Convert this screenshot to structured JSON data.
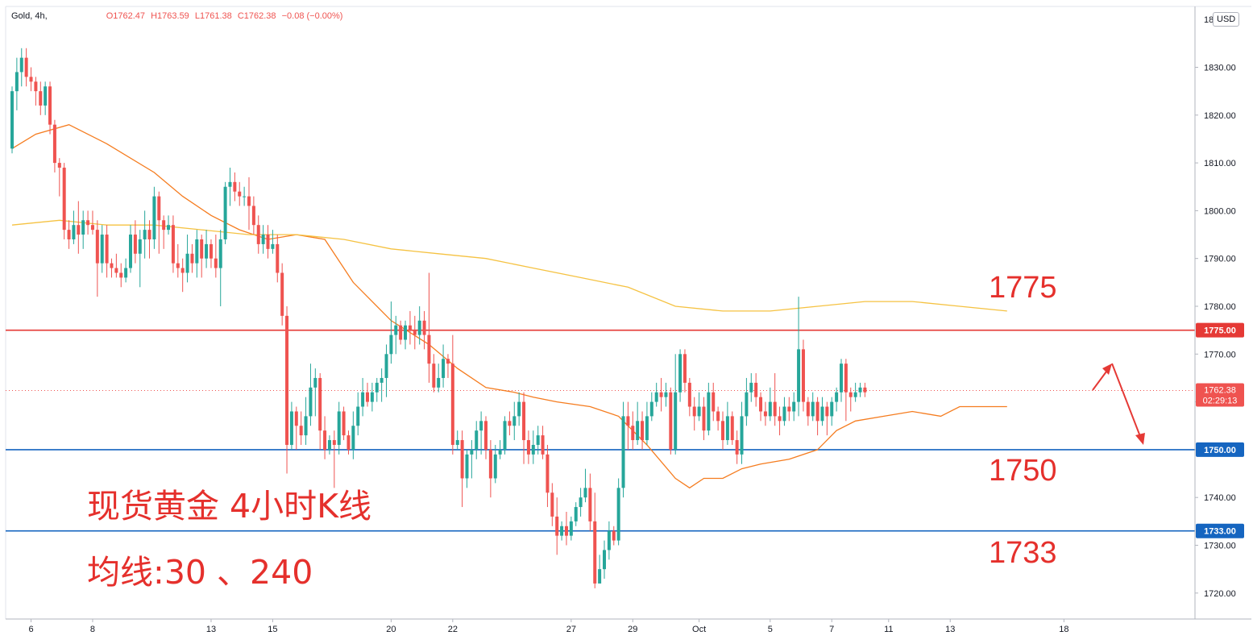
{
  "header": {
    "symbol": "Gold, 4h,",
    "open": "O1762.47",
    "high": "H1763.59",
    "low": "L1761.38",
    "close": "C1762.38",
    "change": "−0.08 (−0.00%)",
    "currency": "USD",
    "axis_top_partial": "18"
  },
  "overlay": {
    "title": "现货黄金 4小时K线",
    "ma_label": "均线:30 、240",
    "level_1775": "1775",
    "level_1750": "1750",
    "level_1733": "1733"
  },
  "colors": {
    "up": "#26a69a",
    "down": "#ef5350",
    "ma30": "#f57c1f",
    "ma240": "#f5c242",
    "resistance": "#e53935",
    "support": "#1565c0",
    "annotation": "#e5302c"
  },
  "chart_data": {
    "type": "candlestick",
    "symbol": "Gold",
    "timeframe": "4h",
    "currency": "USD",
    "ylim": [
      1716,
      1841
    ],
    "y_ticks": [
      1720,
      1730,
      1740,
      1750,
      1760,
      1770,
      1780,
      1790,
      1800,
      1810,
      1820,
      1830
    ],
    "x_ticks": [
      {
        "bar": 4,
        "label": "6"
      },
      {
        "bar": 17,
        "label": "8"
      },
      {
        "bar": 42,
        "label": "13"
      },
      {
        "bar": 55,
        "label": "15"
      },
      {
        "bar": 80,
        "label": "20"
      },
      {
        "bar": 93,
        "label": "22"
      },
      {
        "bar": 118,
        "label": "27"
      },
      {
        "bar": 131,
        "label": "29"
      },
      {
        "bar": 145,
        "label": "Oct"
      },
      {
        "bar": 160,
        "label": "5"
      },
      {
        "bar": 173,
        "label": "7"
      },
      {
        "bar": 185,
        "label": "11"
      },
      {
        "bar": 198,
        "label": "13"
      },
      {
        "bar": 222,
        "label": "18"
      }
    ],
    "horizontal_levels": [
      {
        "value": 1775,
        "label": "1775.00",
        "color": "#e53935"
      },
      {
        "value": 1750,
        "label": "1750.00",
        "color": "#1565c0"
      },
      {
        "value": 1733,
        "label": "1733.00",
        "color": "#1565c0"
      }
    ],
    "last_price": {
      "value": 1762.38,
      "label": "1762.38",
      "countdown": "02:29:13"
    },
    "series": [
      {
        "name": "MA30",
        "color": "#f57c1f",
        "points": [
          [
            0,
            1813
          ],
          [
            5,
            1816
          ],
          [
            12,
            1818
          ],
          [
            20,
            1814
          ],
          [
            30,
            1808
          ],
          [
            36,
            1803
          ],
          [
            42,
            1799
          ],
          [
            48,
            1796
          ],
          [
            54,
            1794
          ],
          [
            60,
            1795
          ],
          [
            66,
            1794
          ],
          [
            72,
            1785
          ],
          [
            80,
            1777
          ],
          [
            88,
            1772
          ],
          [
            94,
            1767
          ],
          [
            100,
            1763
          ],
          [
            106,
            1762
          ],
          [
            110,
            1761
          ],
          [
            115,
            1760
          ],
          [
            122,
            1759
          ],
          [
            128,
            1757
          ],
          [
            134,
            1751
          ],
          [
            140,
            1744
          ],
          [
            143,
            1742
          ],
          [
            146,
            1744
          ],
          [
            150,
            1744
          ],
          [
            154,
            1746
          ],
          [
            158,
            1747
          ],
          [
            164,
            1748
          ],
          [
            170,
            1750
          ],
          [
            174,
            1754
          ],
          [
            178,
            1756
          ],
          [
            184,
            1757
          ],
          [
            190,
            1758
          ],
          [
            196,
            1757
          ],
          [
            200,
            1759
          ],
          [
            209,
            1759
          ],
          [
            210,
            1759
          ]
        ]
      },
      {
        "name": "MA240",
        "color": "#f5c242",
        "points": [
          [
            0,
            1797
          ],
          [
            10,
            1798
          ],
          [
            20,
            1797
          ],
          [
            30,
            1797
          ],
          [
            40,
            1796
          ],
          [
            50,
            1795
          ],
          [
            60,
            1795
          ],
          [
            70,
            1794
          ],
          [
            80,
            1792
          ],
          [
            90,
            1791
          ],
          [
            100,
            1790
          ],
          [
            110,
            1788
          ],
          [
            120,
            1786
          ],
          [
            130,
            1784
          ],
          [
            140,
            1780
          ],
          [
            150,
            1779
          ],
          [
            160,
            1779
          ],
          [
            170,
            1780
          ],
          [
            180,
            1781
          ],
          [
            190,
            1781
          ],
          [
            200,
            1780
          ],
          [
            210,
            1779
          ]
        ]
      }
    ],
    "candles": [
      [
        1813,
        1825,
        1826,
        1812
      ],
      [
        1825,
        1829,
        1832,
        1821
      ],
      [
        1829,
        1832,
        1834,
        1826
      ],
      [
        1832,
        1828,
        1834,
        1826
      ],
      [
        1828,
        1827,
        1830,
        1825
      ],
      [
        1827,
        1825,
        1828,
        1822
      ],
      [
        1825,
        1822,
        1827,
        1820
      ],
      [
        1822,
        1826,
        1827,
        1820
      ],
      [
        1826,
        1818,
        1827,
        1816
      ],
      [
        1818,
        1810,
        1819,
        1808
      ],
      [
        1810,
        1809,
        1811,
        1803
      ],
      [
        1809,
        1796,
        1810,
        1794
      ],
      [
        1796,
        1794,
        1798,
        1792
      ],
      [
        1794,
        1797,
        1800,
        1793
      ],
      [
        1797,
        1795,
        1802,
        1791
      ],
      [
        1795,
        1798,
        1800,
        1792
      ],
      [
        1798,
        1797,
        1800,
        1795
      ],
      [
        1797,
        1796,
        1800,
        1795
      ],
      [
        1796,
        1789,
        1798,
        1782
      ],
      [
        1789,
        1795,
        1797,
        1787
      ],
      [
        1795,
        1789,
        1797,
        1786
      ],
      [
        1789,
        1788,
        1790,
        1786
      ],
      [
        1788,
        1787,
        1791,
        1786
      ],
      [
        1787,
        1786,
        1789,
        1784
      ],
      [
        1786,
        1788,
        1790,
        1785
      ],
      [
        1788,
        1795,
        1797,
        1787
      ],
      [
        1795,
        1791,
        1798,
        1789
      ],
      [
        1791,
        1794,
        1796,
        1784
      ],
      [
        1794,
        1796,
        1800,
        1790
      ],
      [
        1796,
        1794,
        1798,
        1790
      ],
      [
        1794,
        1803,
        1805,
        1792
      ],
      [
        1803,
        1798,
        1804,
        1791
      ],
      [
        1798,
        1796,
        1799,
        1792
      ],
      [
        1796,
        1797,
        1799,
        1795
      ],
      [
        1797,
        1789,
        1799,
        1787
      ],
      [
        1789,
        1788,
        1793,
        1786
      ],
      [
        1788,
        1787,
        1790,
        1783
      ],
      [
        1787,
        1791,
        1795,
        1785
      ],
      [
        1791,
        1789,
        1793,
        1787
      ],
      [
        1789,
        1794,
        1796,
        1786
      ],
      [
        1794,
        1790,
        1795,
        1786
      ],
      [
        1790,
        1793,
        1796,
        1788
      ],
      [
        1793,
        1790,
        1794,
        1788
      ],
      [
        1790,
        1788,
        1795,
        1786
      ],
      [
        1788,
        1794,
        1796,
        1780
      ],
      [
        1794,
        1805,
        1806,
        1793
      ],
      [
        1805,
        1806,
        1809,
        1801
      ],
      [
        1806,
        1804,
        1808,
        1802
      ],
      [
        1804,
        1803,
        1806,
        1801
      ],
      [
        1803,
        1803,
        1805,
        1801
      ],
      [
        1803,
        1801,
        1807,
        1796
      ],
      [
        1801,
        1797,
        1803,
        1795
      ],
      [
        1797,
        1793,
        1799,
        1791
      ],
      [
        1793,
        1795,
        1797,
        1791
      ],
      [
        1795,
        1792,
        1797,
        1790
      ],
      [
        1792,
        1793,
        1796,
        1791
      ],
      [
        1793,
        1787,
        1795,
        1785
      ],
      [
        1787,
        1778,
        1789,
        1776
      ],
      [
        1778,
        1751,
        1780,
        1745
      ],
      [
        1751,
        1758,
        1760,
        1750
      ],
      [
        1758,
        1755,
        1759,
        1750
      ],
      [
        1755,
        1753,
        1758,
        1751
      ],
      [
        1753,
        1757,
        1761,
        1751
      ],
      [
        1757,
        1763,
        1768,
        1755
      ],
      [
        1763,
        1765,
        1767,
        1757
      ],
      [
        1765,
        1754,
        1766,
        1750
      ],
      [
        1754,
        1750,
        1757,
        1748
      ],
      [
        1750,
        1752,
        1753,
        1749
      ],
      [
        1752,
        1751,
        1754,
        1742
      ],
      [
        1751,
        1758,
        1760,
        1749
      ],
      [
        1758,
        1753,
        1759,
        1752
      ],
      [
        1753,
        1750,
        1754,
        1749
      ],
      [
        1750,
        1755,
        1758,
        1748
      ],
      [
        1755,
        1759,
        1762,
        1753
      ],
      [
        1759,
        1762,
        1765,
        1757
      ],
      [
        1762,
        1760,
        1764,
        1759
      ],
      [
        1760,
        1762,
        1764,
        1758
      ],
      [
        1762,
        1764,
        1765,
        1760
      ],
      [
        1764,
        1765,
        1767,
        1760
      ],
      [
        1765,
        1770,
        1772,
        1761
      ],
      [
        1770,
        1774,
        1781,
        1768
      ],
      [
        1774,
        1776,
        1778,
        1770
      ],
      [
        1776,
        1773,
        1777,
        1772
      ],
      [
        1773,
        1776,
        1777,
        1771
      ],
      [
        1776,
        1775,
        1779,
        1772
      ],
      [
        1775,
        1774,
        1778,
        1771
      ],
      [
        1774,
        1777,
        1780,
        1772
      ],
      [
        1777,
        1774,
        1779,
        1771
      ],
      [
        1774,
        1768,
        1787,
        1764
      ],
      [
        1768,
        1763,
        1770,
        1762
      ],
      [
        1763,
        1765,
        1768,
        1762
      ],
      [
        1765,
        1769,
        1772,
        1763
      ],
      [
        1769,
        1768,
        1770,
        1765
      ],
      [
        1768,
        1751,
        1774,
        1749
      ],
      [
        1751,
        1752,
        1754,
        1750
      ],
      [
        1752,
        1744,
        1754,
        1738
      ],
      [
        1744,
        1749,
        1750,
        1742
      ],
      [
        1749,
        1750,
        1752,
        1744
      ],
      [
        1750,
        1754,
        1756,
        1748
      ],
      [
        1754,
        1756,
        1758,
        1749
      ],
      [
        1756,
        1750,
        1757,
        1748
      ],
      [
        1750,
        1744,
        1752,
        1740
      ],
      [
        1744,
        1749,
        1751,
        1743
      ],
      [
        1749,
        1750,
        1752,
        1748
      ],
      [
        1750,
        1756,
        1757,
        1749
      ],
      [
        1756,
        1755,
        1758,
        1753
      ],
      [
        1755,
        1757,
        1760,
        1752
      ],
      [
        1757,
        1760,
        1762,
        1755
      ],
      [
        1760,
        1752,
        1762,
        1747
      ],
      [
        1752,
        1749,
        1754,
        1747
      ],
      [
        1749,
        1751,
        1754,
        1747
      ],
      [
        1751,
        1753,
        1755,
        1749
      ],
      [
        1753,
        1749,
        1755,
        1748
      ],
      [
        1749,
        1741,
        1751,
        1738
      ],
      [
        1741,
        1736,
        1743,
        1734
      ],
      [
        1736,
        1732,
        1740,
        1728
      ],
      [
        1732,
        1734,
        1735,
        1731
      ],
      [
        1734,
        1732,
        1737,
        1730
      ],
      [
        1732,
        1735,
        1736,
        1731
      ],
      [
        1735,
        1738,
        1739,
        1734
      ],
      [
        1738,
        1740,
        1742,
        1736
      ],
      [
        1740,
        1742,
        1746,
        1739
      ],
      [
        1742,
        1735,
        1745,
        1733
      ],
      [
        1735,
        1722,
        1741,
        1721
      ],
      [
        1722,
        1725,
        1728,
        1723
      ],
      [
        1725,
        1729,
        1731,
        1723
      ],
      [
        1729,
        1733,
        1735,
        1727
      ],
      [
        1733,
        1731,
        1734,
        1730
      ],
      [
        1731,
        1742,
        1744,
        1730
      ],
      [
        1742,
        1757,
        1760,
        1740
      ],
      [
        1757,
        1755,
        1760,
        1750
      ],
      [
        1755,
        1752,
        1758,
        1750
      ],
      [
        1752,
        1756,
        1760,
        1751
      ],
      [
        1756,
        1752,
        1758,
        1750
      ],
      [
        1752,
        1757,
        1760,
        1751
      ],
      [
        1757,
        1760,
        1762,
        1756
      ],
      [
        1760,
        1762,
        1764,
        1759
      ],
      [
        1762,
        1761,
        1765,
        1758
      ],
      [
        1761,
        1762,
        1764,
        1759
      ],
      [
        1762,
        1750,
        1763,
        1749
      ],
      [
        1750,
        1762,
        1770,
        1749
      ],
      [
        1762,
        1770,
        1771,
        1760
      ],
      [
        1770,
        1764,
        1771,
        1762
      ],
      [
        1764,
        1759,
        1765,
        1757
      ],
      [
        1759,
        1757,
        1761,
        1754
      ],
      [
        1757,
        1759,
        1762,
        1756
      ],
      [
        1759,
        1754,
        1761,
        1752
      ],
      [
        1754,
        1762,
        1764,
        1753
      ],
      [
        1762,
        1758,
        1764,
        1756
      ],
      [
        1758,
        1756,
        1759,
        1754
      ],
      [
        1756,
        1752,
        1758,
        1750
      ],
      [
        1752,
        1757,
        1760,
        1751
      ],
      [
        1757,
        1752,
        1758,
        1751
      ],
      [
        1752,
        1749,
        1754,
        1747
      ],
      [
        1749,
        1757,
        1760,
        1747
      ],
      [
        1757,
        1762,
        1765,
        1755
      ],
      [
        1762,
        1764,
        1766,
        1760
      ],
      [
        1764,
        1761,
        1766,
        1759
      ],
      [
        1761,
        1758,
        1762,
        1756
      ],
      [
        1758,
        1757,
        1760,
        1755
      ],
      [
        1757,
        1760,
        1763,
        1756
      ],
      [
        1760,
        1757,
        1766,
        1755
      ],
      [
        1757,
        1756,
        1759,
        1753
      ],
      [
        1756,
        1759,
        1761,
        1755
      ],
      [
        1759,
        1758,
        1761,
        1756
      ],
      [
        1758,
        1760,
        1762,
        1756
      ],
      [
        1760,
        1771,
        1782,
        1757
      ],
      [
        1771,
        1760,
        1773,
        1758
      ],
      [
        1760,
        1757,
        1761,
        1755
      ],
      [
        1757,
        1760,
        1762,
        1756
      ],
      [
        1760,
        1756,
        1761,
        1753
      ],
      [
        1756,
        1759,
        1761,
        1755
      ],
      [
        1759,
        1757,
        1760,
        1753
      ],
      [
        1757,
        1760,
        1761,
        1755
      ],
      [
        1760,
        1762,
        1763,
        1758
      ],
      [
        1762,
        1768,
        1769,
        1760
      ],
      [
        1768,
        1762,
        1769,
        1756
      ],
      [
        1762,
        1761,
        1763,
        1758
      ],
      [
        1761,
        1762,
        1764,
        1760
      ],
      [
        1762,
        1763,
        1764,
        1761
      ],
      [
        1763,
        1762,
        1764,
        1761
      ]
    ]
  }
}
